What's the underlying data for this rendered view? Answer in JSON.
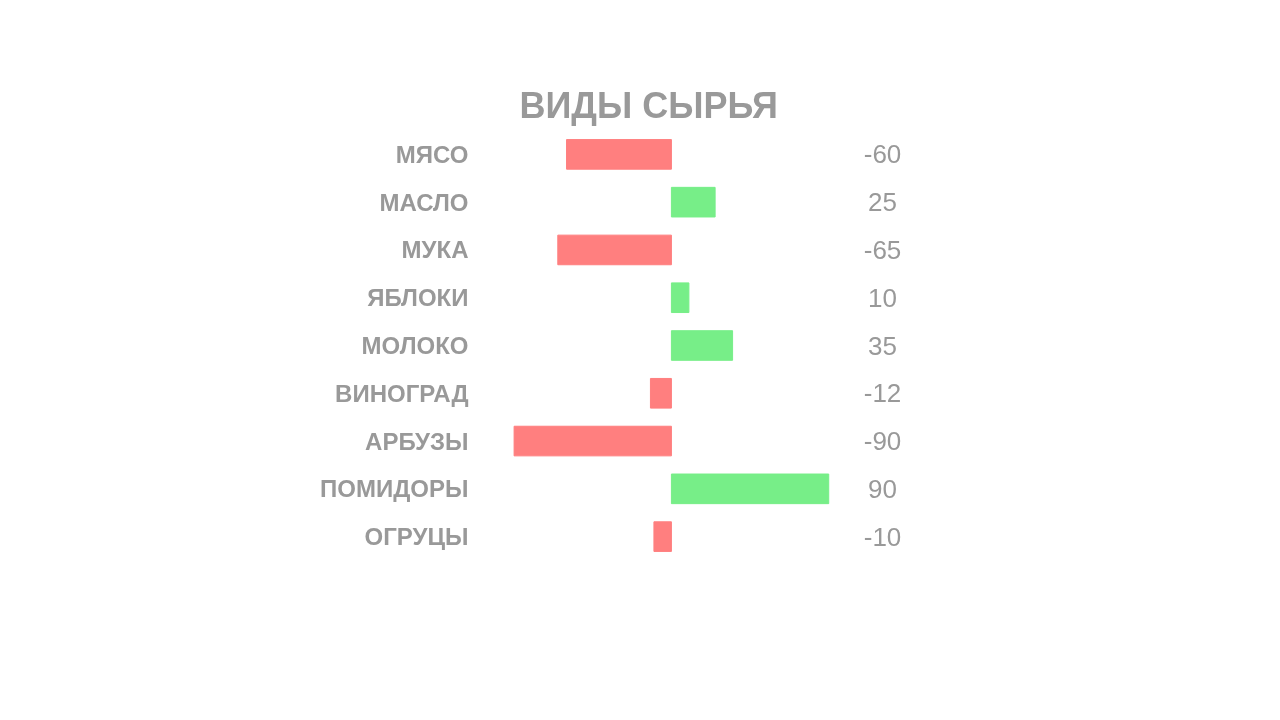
{
  "chart_data": {
    "type": "bar",
    "orientation": "horizontal",
    "title": "ВИДЫ СЫРЬЯ",
    "categories": [
      "МЯСО",
      "МАСЛО",
      "МУКА",
      "ЯБЛОКИ",
      "МОЛОКО",
      "ВИНОГРАД",
      "АРБУЗЫ",
      "ПОМИДОРЫ",
      "ОГРУЦЫ"
    ],
    "values": [
      -60,
      25,
      -65,
      10,
      35,
      -12,
      -90,
      90,
      -10
    ],
    "colors": [
      "#ff7f7f",
      "#77ee88",
      "#ff7f7f",
      "#77ee88",
      "#77ee88",
      "#ff7f7f",
      "#ff7f7f",
      "#77ee88",
      "#ff7f7f"
    ],
    "data_labels": true,
    "grid": false
  }
}
